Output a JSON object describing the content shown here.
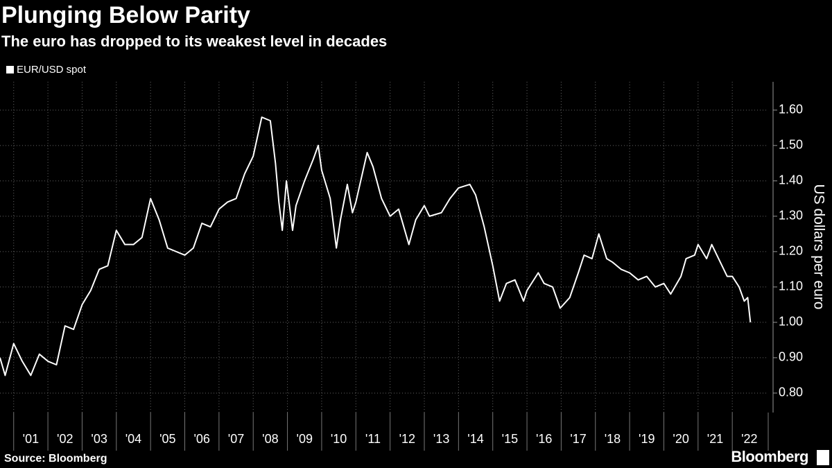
{
  "chart_data": {
    "type": "line",
    "title": "Plunging Below Parity",
    "subtitle": "The euro has dropped to its weakest level in decades",
    "y_label": "US dollars per euro",
    "source": "Source: Bloomberg",
    "logo": "Bloomberg",
    "x": [
      2000.6,
      2000.75,
      2001.0,
      2001.25,
      2001.5,
      2001.75,
      2002.0,
      2002.25,
      2002.5,
      2002.75,
      2003.0,
      2003.25,
      2003.5,
      2003.75,
      2004.0,
      2004.25,
      2004.5,
      2004.75,
      2005.0,
      2005.25,
      2005.5,
      2005.75,
      2006.0,
      2006.25,
      2006.5,
      2006.75,
      2007.0,
      2007.25,
      2007.5,
      2007.75,
      2008.0,
      2008.25,
      2008.5,
      2008.65,
      2008.75,
      2008.85,
      2008.97,
      2009.15,
      2009.25,
      2009.5,
      2009.75,
      2009.9,
      2010.0,
      2010.25,
      2010.43,
      2010.55,
      2010.75,
      2010.9,
      2011.0,
      2011.33,
      2011.5,
      2011.75,
      2012.0,
      2012.25,
      2012.55,
      2012.75,
      2013.0,
      2013.15,
      2013.5,
      2013.75,
      2014.0,
      2014.33,
      2014.5,
      2014.75,
      2015.0,
      2015.2,
      2015.4,
      2015.65,
      2015.9,
      2016.0,
      2016.33,
      2016.5,
      2016.75,
      2016.97,
      2017.25,
      2017.5,
      2017.67,
      2017.9,
      2018.1,
      2018.33,
      2018.5,
      2018.75,
      2019.0,
      2019.25,
      2019.5,
      2019.75,
      2020.0,
      2020.2,
      2020.5,
      2020.65,
      2020.9,
      2021.0,
      2021.25,
      2021.4,
      2021.6,
      2021.85,
      2022.0,
      2022.2,
      2022.35,
      2022.45,
      2022.53
    ],
    "series": [
      {
        "name": "EUR/USD spot",
        "color": "#ffffff",
        "values": [
          0.9,
          0.85,
          0.94,
          0.89,
          0.85,
          0.91,
          0.89,
          0.88,
          0.99,
          0.98,
          1.05,
          1.09,
          1.15,
          1.16,
          1.26,
          1.22,
          1.22,
          1.24,
          1.35,
          1.29,
          1.21,
          1.2,
          1.19,
          1.21,
          1.28,
          1.27,
          1.32,
          1.34,
          1.35,
          1.42,
          1.47,
          1.58,
          1.57,
          1.45,
          1.34,
          1.26,
          1.4,
          1.26,
          1.33,
          1.4,
          1.46,
          1.5,
          1.43,
          1.35,
          1.21,
          1.29,
          1.39,
          1.31,
          1.34,
          1.48,
          1.44,
          1.35,
          1.3,
          1.32,
          1.22,
          1.29,
          1.33,
          1.3,
          1.31,
          1.35,
          1.38,
          1.39,
          1.36,
          1.27,
          1.16,
          1.06,
          1.11,
          1.12,
          1.06,
          1.09,
          1.14,
          1.11,
          1.1,
          1.04,
          1.07,
          1.14,
          1.19,
          1.18,
          1.25,
          1.18,
          1.17,
          1.15,
          1.14,
          1.12,
          1.13,
          1.1,
          1.11,
          1.08,
          1.13,
          1.18,
          1.19,
          1.22,
          1.18,
          1.22,
          1.18,
          1.13,
          1.13,
          1.1,
          1.06,
          1.07,
          1.0
        ]
      }
    ],
    "xlim": [
      2000.6,
      2023.05
    ],
    "ylim": [
      0.745,
      1.68
    ],
    "xticks": [
      {
        "value": 2001,
        "label": "'01"
      },
      {
        "value": 2002,
        "label": "'02"
      },
      {
        "value": 2003,
        "label": "'03"
      },
      {
        "value": 2004,
        "label": "'04"
      },
      {
        "value": 2005,
        "label": "'05"
      },
      {
        "value": 2006,
        "label": "'06"
      },
      {
        "value": 2007,
        "label": "'07"
      },
      {
        "value": 2008,
        "label": "'08"
      },
      {
        "value": 2009,
        "label": "'09"
      },
      {
        "value": 2010,
        "label": "'10"
      },
      {
        "value": 2011,
        "label": "'11"
      },
      {
        "value": 2012,
        "label": "'12"
      },
      {
        "value": 2013,
        "label": "'13"
      },
      {
        "value": 2014,
        "label": "'14"
      },
      {
        "value": 2015,
        "label": "'15"
      },
      {
        "value": 2016,
        "label": "'16"
      },
      {
        "value": 2017,
        "label": "'17"
      },
      {
        "value": 2018,
        "label": "'18"
      },
      {
        "value": 2019,
        "label": "'19"
      },
      {
        "value": 2020,
        "label": "'20"
      },
      {
        "value": 2021,
        "label": "'21"
      },
      {
        "value": 2022,
        "label": "'22"
      }
    ],
    "yticks": [
      {
        "value": 0.8,
        "label": "0.80"
      },
      {
        "value": 0.9,
        "label": "0.90"
      },
      {
        "value": 1.0,
        "label": "1.00"
      },
      {
        "value": 1.1,
        "label": "1.10"
      },
      {
        "value": 1.2,
        "label": "1.20"
      },
      {
        "value": 1.3,
        "label": "1.30"
      },
      {
        "value": 1.4,
        "label": "1.40"
      },
      {
        "value": 1.5,
        "label": "1.50"
      },
      {
        "value": 1.6,
        "label": "1.60"
      }
    ],
    "grid": true
  }
}
